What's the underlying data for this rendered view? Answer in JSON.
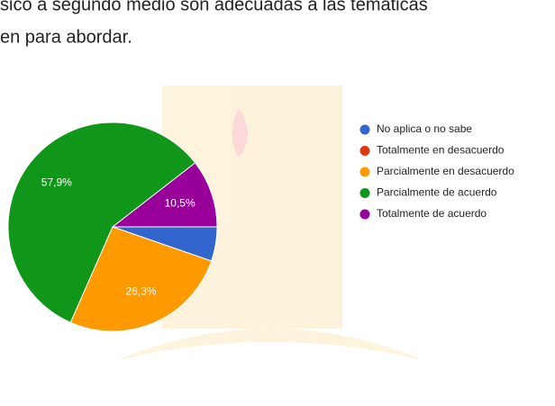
{
  "chart_data": {
    "type": "pie",
    "title_lines": [
      "sico a segundo medio son adecuadas a las temáticas",
      "en para abordar."
    ],
    "categories": [
      "No aplica o no sabe",
      "Totalmente en desacuerdo",
      "Parcialmente en desacuerdo",
      "Parcialmente de acuerdo",
      "Totalmente de acuerdo"
    ],
    "values": [
      5.3,
      0,
      26.3,
      57.9,
      10.5
    ],
    "value_labels": [
      null,
      null,
      "26,3%",
      "57,9%",
      "10,5%"
    ],
    "colors": [
      "#3366cc",
      "#dc3912",
      "#ff9900",
      "#109618",
      "#990099"
    ],
    "legend": "right"
  }
}
